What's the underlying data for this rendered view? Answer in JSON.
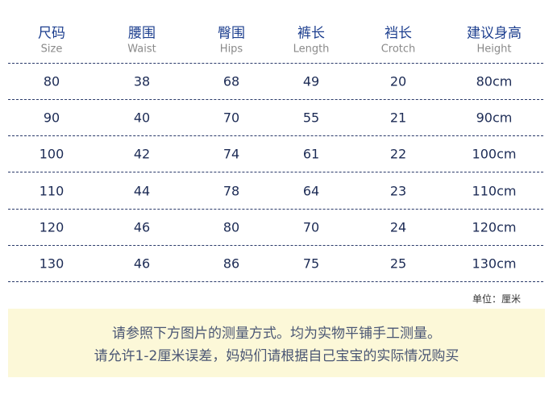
{
  "table": {
    "columns": [
      {
        "label": "尺码",
        "sublabel": "Size"
      },
      {
        "label": "腰围",
        "sublabel": "Waist"
      },
      {
        "label": "臀围",
        "sublabel": "Hips"
      },
      {
        "label": "裤长",
        "sublabel": "Length"
      },
      {
        "label": "裆长",
        "sublabel": "Crotch"
      },
      {
        "label": "建议身高",
        "sublabel": "Height"
      }
    ],
    "rows": [
      [
        80,
        38,
        68,
        49,
        20,
        "80cm"
      ],
      [
        90,
        40,
        70,
        55,
        21,
        "90cm"
      ],
      [
        100,
        42,
        74,
        61,
        22,
        "100cm"
      ],
      [
        110,
        44,
        78,
        64,
        23,
        "110cm"
      ],
      [
        120,
        46,
        80,
        70,
        24,
        "120cm"
      ],
      [
        130,
        46,
        86,
        75,
        25,
        "130cm"
      ]
    ]
  },
  "unit_note": "单位：厘米",
  "notice": [
    "请参照下方图片的测量方式。均为实物平铺手工测量。",
    "请允许1-2厘米误差，妈妈们请根据自己宝宝的实际情况购买"
  ]
}
